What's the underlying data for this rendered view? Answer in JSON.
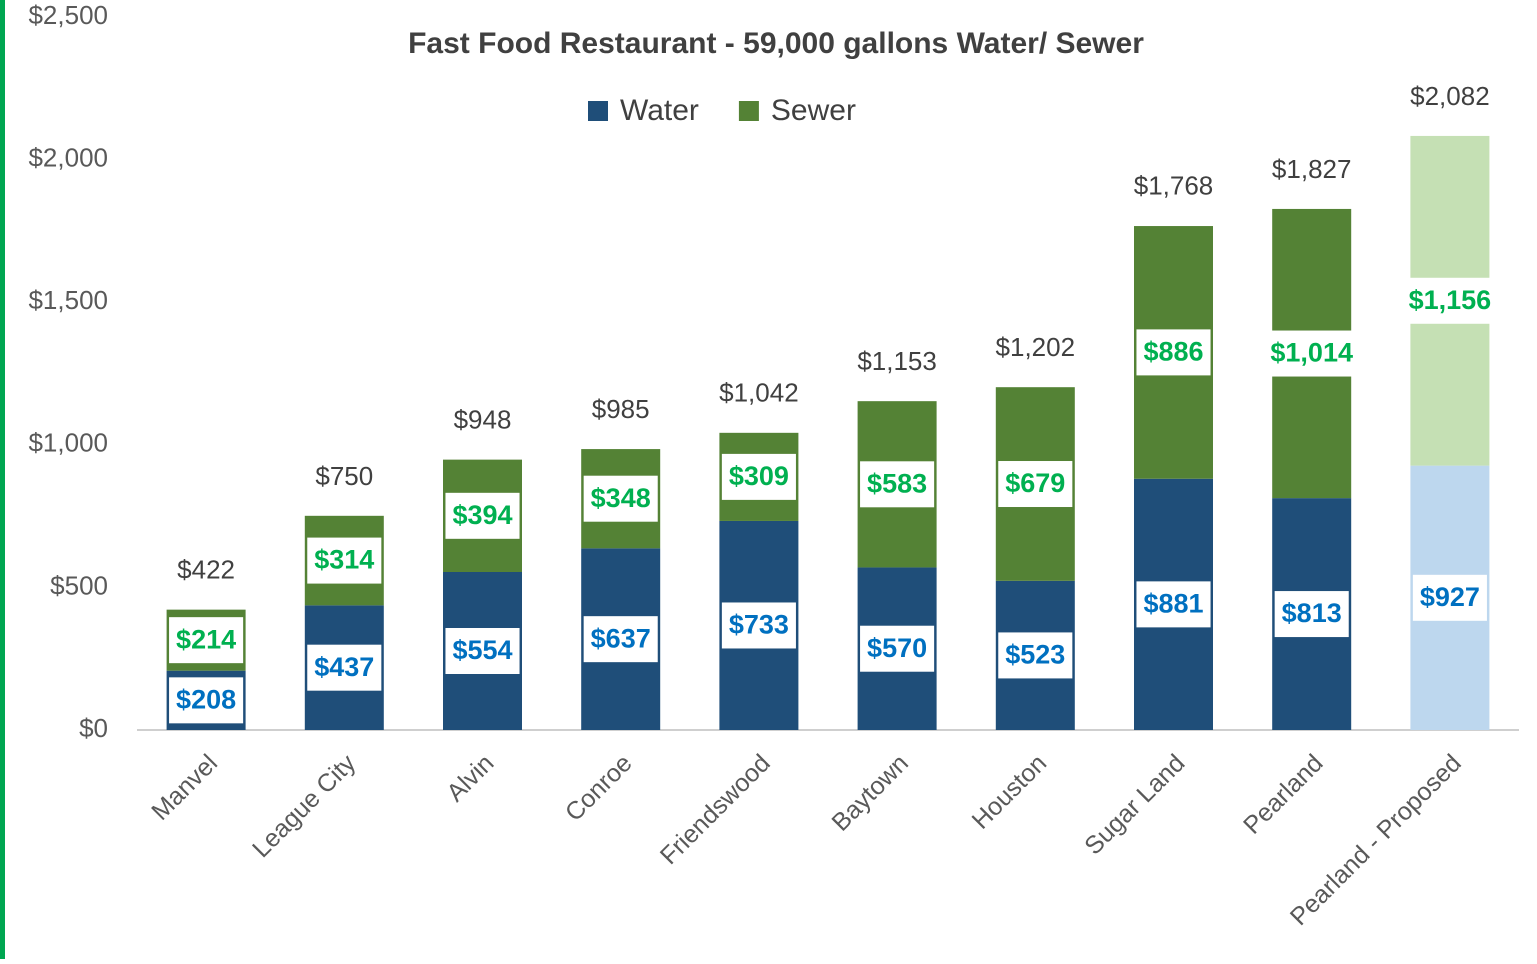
{
  "chart_data": {
    "type": "stacked_bar",
    "title": "Fast Food Restaurant - 59,000 gallons Water/ Sewer",
    "categories": [
      "Manvel",
      "League City",
      "Alvin",
      "Conroe",
      "Friendswood",
      "Baytown",
      "Houston",
      "Sugar Land",
      "Pearland",
      "Pearland - Proposed"
    ],
    "series": [
      {
        "name": "Water",
        "color": "#1f4e79",
        "label_color": "#0070c0",
        "colors": [
          "#1f4e79",
          "#1f4e79",
          "#1f4e79",
          "#1f4e79",
          "#1f4e79",
          "#1f4e79",
          "#1f4e79",
          "#1f4e79",
          "#1f4e79",
          "#bdd7ee"
        ],
        "values": [
          208,
          437,
          554,
          637,
          733,
          570,
          523,
          881,
          813,
          927
        ],
        "value_labels": [
          "$208",
          "$437",
          "$554",
          "$637",
          "$733",
          "$570",
          "$523",
          "$881",
          "$813",
          "$927"
        ]
      },
      {
        "name": "Sewer",
        "color": "#548235",
        "label_color": "#00b050",
        "colors": [
          "#548235",
          "#548235",
          "#548235",
          "#548235",
          "#548235",
          "#548235",
          "#548235",
          "#548235",
          "#548235",
          "#c5e0b4"
        ],
        "values": [
          214,
          314,
          394,
          348,
          309,
          583,
          679,
          886,
          1014,
          1156
        ],
        "value_labels": [
          "$214",
          "$314",
          "$394",
          "$348",
          "$309",
          "$583",
          "$679",
          "$886",
          "$1,014",
          "$1,156"
        ]
      }
    ],
    "totals": [
      422,
      750,
      948,
      985,
      1042,
      1153,
      1202,
      1768,
      1827,
      2082
    ],
    "total_labels": [
      "$422",
      "$750",
      "$948",
      "$985",
      "$1,042",
      "$1,153",
      "$1,202",
      "$1,768",
      "$1,827",
      "$2,082"
    ],
    "ylim": [
      0,
      2500
    ],
    "yticks": [
      {
        "value": 0,
        "label": "$0"
      },
      {
        "value": 500,
        "label": "$500"
      },
      {
        "value": 1000,
        "label": "$1,000"
      },
      {
        "value": 1500,
        "label": "$1,500"
      },
      {
        "value": 2000,
        "label": "$2,000"
      },
      {
        "value": 2500,
        "label": "$2,500"
      }
    ],
    "legend": "top",
    "grid": false
  }
}
